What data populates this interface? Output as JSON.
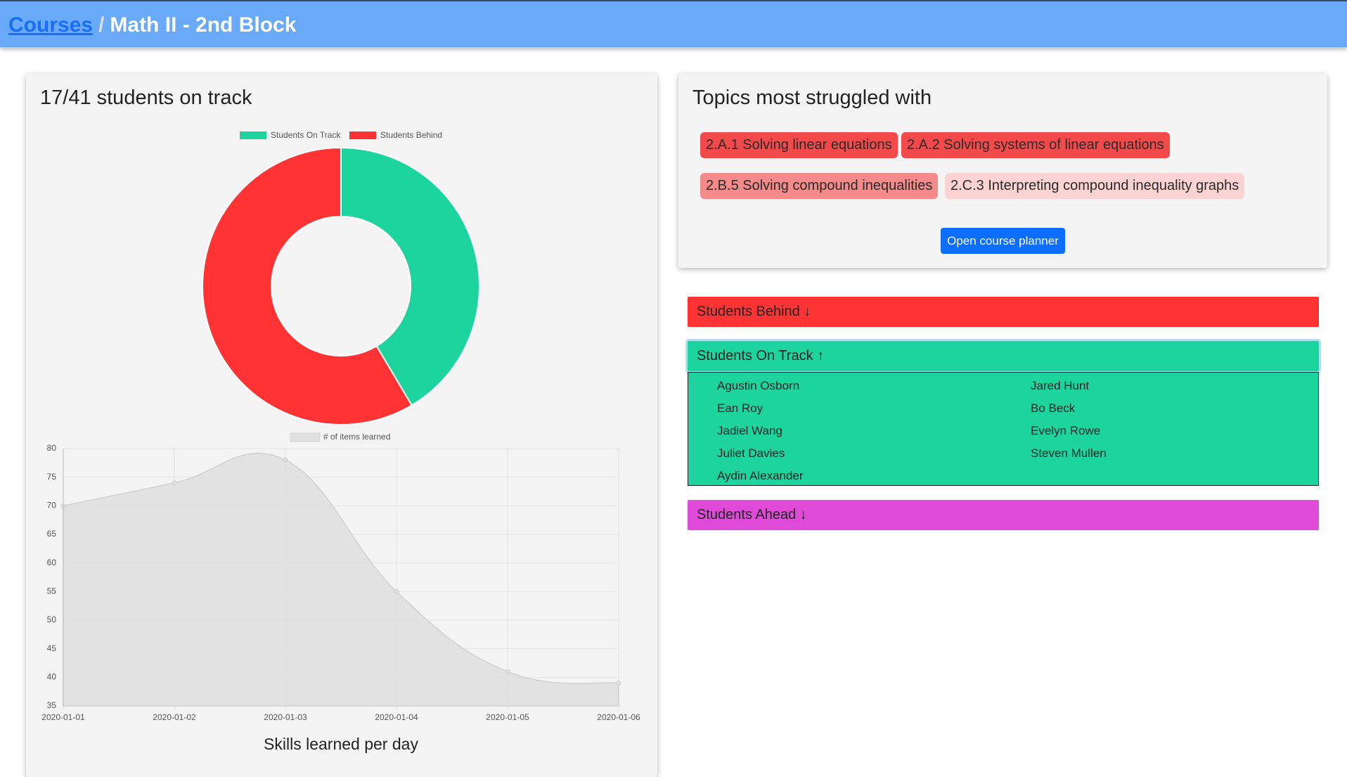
{
  "header": {
    "link": "Courses",
    "separator": "/",
    "title": "Math II - 2nd Block"
  },
  "chart_data": [
    {
      "type": "doughnut",
      "title": "17/41 students on track",
      "categories": [
        "Students On Track",
        "Students Behind"
      ],
      "values": [
        17,
        24
      ],
      "colors": [
        "#1dd49e",
        "#ff3333"
      ]
    },
    {
      "type": "line",
      "title": "Skills learned per day",
      "x": [
        "2020-01-01",
        "2020-01-02",
        "2020-01-03",
        "2020-01-04",
        "2020-01-05",
        "2020-01-06"
      ],
      "series": [
        {
          "name": "# of items learned",
          "color": "#e0e0e0",
          "values": [
            70,
            74,
            78,
            55,
            41,
            39
          ]
        }
      ],
      "ylim": [
        35,
        80
      ],
      "yticks": [
        35,
        40,
        45,
        50,
        55,
        60,
        65,
        70,
        75,
        80
      ],
      "grid": true
    }
  ],
  "topics": {
    "title": "Topics most struggled with",
    "items": [
      {
        "label": "2.A.1 Solving linear equations",
        "color": "#f24a4a"
      },
      {
        "label": "2.A.2 Solving systems of linear equations",
        "color": "#f24a4a"
      },
      {
        "label": "2.B.5 Solving compound inequalities",
        "color": "#f48a8a"
      },
      {
        "label": "2.C.3 Interpreting compound inequality graphs",
        "color": "#fbd3d3"
      }
    ],
    "button": "Open course planner"
  },
  "groups": [
    {
      "label": "Students Behind ↓",
      "color": "#fe3333",
      "students": []
    },
    {
      "label": "Students On Track ↑",
      "color": "#1dd49e",
      "students": [
        "Agustin Osborn",
        "Ean Roy",
        "Jadiel Wang",
        "Juliet Davies",
        "Aydin Alexander",
        "Jared Hunt",
        "Bo Beck",
        "Evelyn Rowe",
        "Steven Mullen"
      ]
    },
    {
      "label": "Students Ahead ↓",
      "color": "#e04ad8",
      "students": []
    }
  ]
}
